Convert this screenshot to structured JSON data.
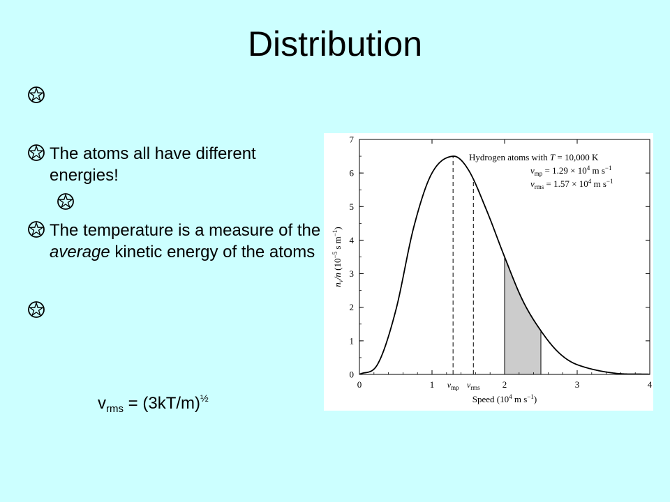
{
  "slide": {
    "title": "Distribution",
    "bullets": [
      {
        "text": ""
      },
      {
        "text": "The atoms all have different energies!"
      },
      {
        "text": ""
      },
      {
        "text": "The temperature is a measure of the",
        "emphasis": "average",
        "text_after": "kinetic energy of the atoms"
      },
      {
        "text": ""
      }
    ],
    "formula": {
      "lhs_main": "v",
      "lhs_sub": "rms",
      "rhs": "= (3kT/m)",
      "exponent": "½"
    }
  },
  "chart_data": {
    "type": "line",
    "title": "Hydrogen atoms with T = 10,000 K",
    "annotations": [
      "vmp = 1.29 × 10^4 m s^-1",
      "vrms = 1.57 × 10^4 m s^-1"
    ],
    "xlabel": "Speed (10^4 m s^-1)",
    "ylabel": "nv/n (10^-5 s m^-1)",
    "xlim": [
      0,
      4
    ],
    "ylim": [
      0,
      7
    ],
    "x_ticks": [
      0,
      1,
      2,
      3,
      4
    ],
    "y_ticks": [
      0,
      1,
      2,
      3,
      4,
      5,
      6,
      7
    ],
    "x_tick_labels_extra": [
      "vmp",
      "vrms"
    ],
    "series": [
      {
        "x": [
          0,
          0.25,
          0.5,
          0.75,
          1.0,
          1.29,
          1.5,
          1.75,
          2.0,
          2.25,
          2.5,
          2.75,
          3.0,
          3.5,
          4.0
        ],
        "y": [
          0,
          0.3,
          1.9,
          4.4,
          6.0,
          6.5,
          6.1,
          4.9,
          3.5,
          2.2,
          1.3,
          0.64,
          0.29,
          0.04,
          0.005
        ]
      }
    ],
    "vertical_lines": [
      {
        "x": 1.29,
        "label": "vmp",
        "style": "dashed"
      },
      {
        "x": 1.57,
        "label": "vrms",
        "style": "dashed"
      }
    ],
    "shaded_region": {
      "x_from": 2.0,
      "x_to": 2.5
    },
    "grid": false
  }
}
